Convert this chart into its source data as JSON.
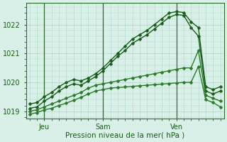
{
  "background_color": "#d8ede4",
  "plot_bg_color": "#d8f0e8",
  "grid_color": "#b0d8c8",
  "vgrid_color": "#a0c8b8",
  "line_color_dark": "#1a5c1a",
  "line_color_mid": "#2a7a2a",
  "xlabel": "Pression niveau de la mer( hPa )",
  "ylim": [
    1018.75,
    1022.75
  ],
  "yticks": [
    1019,
    1020,
    1021,
    1022
  ],
  "xtick_labels": [
    "Jeu",
    "Sam",
    "Ven"
  ],
  "xtick_positions": [
    2,
    10,
    20
  ],
  "total_points": 27,
  "series": [
    [
      1019.25,
      1019.3,
      1019.5,
      1019.65,
      1019.85,
      1020.0,
      1020.1,
      1020.05,
      1020.15,
      1020.3,
      1020.5,
      1020.75,
      1021.0,
      1021.25,
      1021.5,
      1021.65,
      1021.8,
      1022.0,
      1022.2,
      1022.4,
      1022.45,
      1022.42,
      1022.1,
      1021.9,
      1019.85,
      1019.75,
      1019.85
    ],
    [
      1019.1,
      1019.15,
      1019.35,
      1019.5,
      1019.7,
      1019.85,
      1019.95,
      1019.9,
      1020.05,
      1020.2,
      1020.4,
      1020.65,
      1020.9,
      1021.1,
      1021.35,
      1021.5,
      1021.65,
      1021.85,
      1022.05,
      1022.25,
      1022.35,
      1022.32,
      1021.9,
      1021.6,
      1019.7,
      1019.6,
      1019.7
    ],
    [
      1019.0,
      1019.05,
      1019.15,
      1019.25,
      1019.35,
      1019.45,
      1019.55,
      1019.65,
      1019.8,
      1019.9,
      1019.95,
      1020.0,
      1020.05,
      1020.1,
      1020.15,
      1020.2,
      1020.25,
      1020.3,
      1020.35,
      1020.4,
      1020.45,
      1020.5,
      1020.5,
      1021.1,
      1019.55,
      1019.45,
      1019.35
    ],
    [
      1018.9,
      1018.95,
      1019.05,
      1019.1,
      1019.2,
      1019.28,
      1019.38,
      1019.48,
      1019.6,
      1019.7,
      1019.75,
      1019.8,
      1019.82,
      1019.84,
      1019.86,
      1019.88,
      1019.9,
      1019.92,
      1019.94,
      1019.96,
      1019.98,
      1020.0,
      1020.0,
      1020.55,
      1019.4,
      1019.3,
      1019.15
    ]
  ],
  "vline_positions": [
    2,
    10,
    20
  ],
  "vline_color": "#2d6b2d",
  "marker": "D",
  "marker_size": 2.5,
  "linewidth": 1.0,
  "tick_fontsize": 7,
  "xlabel_fontsize": 7.5,
  "tick_color": "#1a5c1a",
  "spine_color": "#2d6b2d"
}
